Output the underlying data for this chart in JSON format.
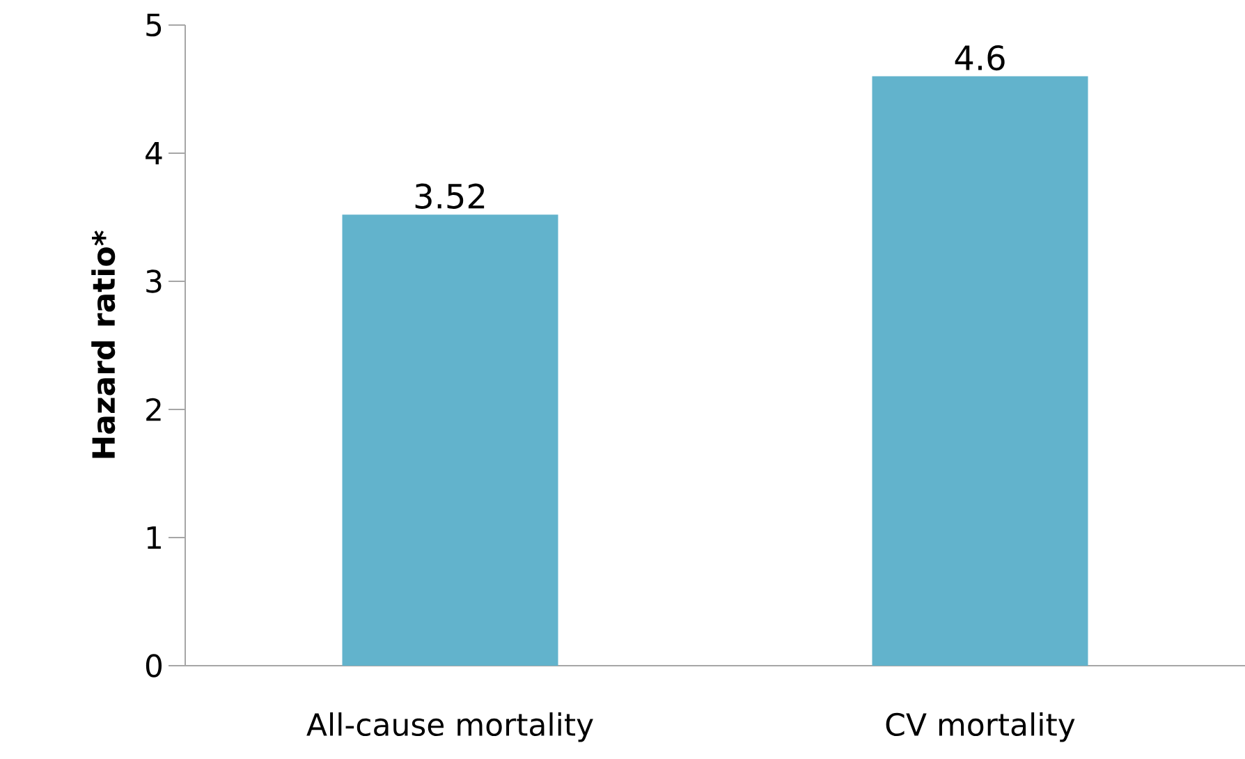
{
  "chart_data": {
    "type": "bar",
    "ylabel": "Hazard ratio*",
    "categories": [
      "All-cause mortality",
      "CV mortality"
    ],
    "values": [
      3.52,
      4.6
    ],
    "color": "#62b3cc",
    "ylim": [
      0,
      5
    ],
    "yticks": [
      0,
      1,
      2,
      3,
      4,
      5
    ],
    "data_labels": true,
    "grid": false
  }
}
